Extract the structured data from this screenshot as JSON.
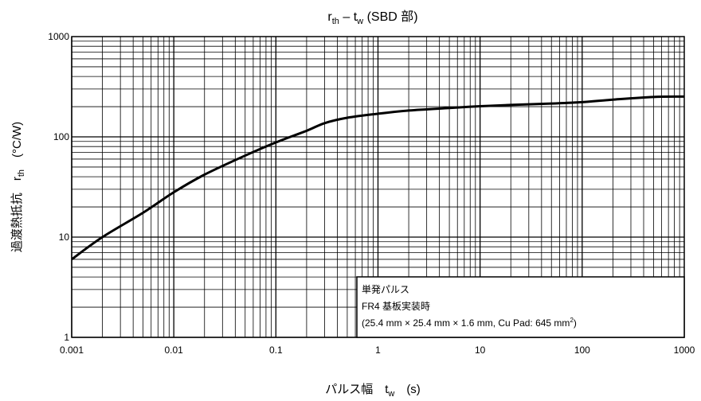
{
  "chart_data": {
    "type": "line",
    "title": {
      "main": "r",
      "sub1": "th",
      "mid": " – t",
      "sub2": "w",
      "tail": " (SBD 部)"
    },
    "xaxis": {
      "scale": "log",
      "range": [
        0.001,
        1000
      ],
      "ticks": [
        0.001,
        0.01,
        0.1,
        1,
        10,
        100,
        1000
      ],
      "tick_labels": [
        "0.001",
        "0.01",
        "0.1",
        "1",
        "10",
        "100",
        "1000"
      ],
      "label": {
        "main": "パルス幅　t",
        "sub": "w",
        "unit": "　(s)"
      }
    },
    "yaxis": {
      "scale": "log",
      "range": [
        1,
        1000
      ],
      "ticks": [
        1,
        10,
        100,
        1000
      ],
      "tick_labels": [
        "1",
        "10",
        "100",
        "1000"
      ],
      "label": {
        "main": "過渡熱抵抗　r",
        "sub": "th",
        "unit": "　(°C/W)"
      }
    },
    "grid": true,
    "series": [
      {
        "color": "#000000",
        "x": [
          0.001,
          0.002,
          0.005,
          0.01,
          0.02,
          0.05,
          0.1,
          0.2,
          0.3,
          0.5,
          1,
          2,
          5,
          10,
          20,
          50,
          100,
          200,
          500,
          1000
        ],
        "y": [
          6.0,
          10.0,
          17.5,
          28.0,
          42.0,
          65.0,
          88.0,
          115.0,
          137.0,
          155.0,
          170.0,
          183.0,
          194.0,
          202.0,
          208.0,
          215.0,
          222.0,
          235.0,
          250.0,
          252.0
        ]
      }
    ],
    "legend": {
      "position": "bottom-right",
      "lines": [
        "単発パルス",
        "FR4 基板実装時",
        "(25.4 mm × 25.4 mm × 1.6 mm, Cu Pad: 645 mm"
      ],
      "superscript": "2",
      "close": ")"
    }
  }
}
